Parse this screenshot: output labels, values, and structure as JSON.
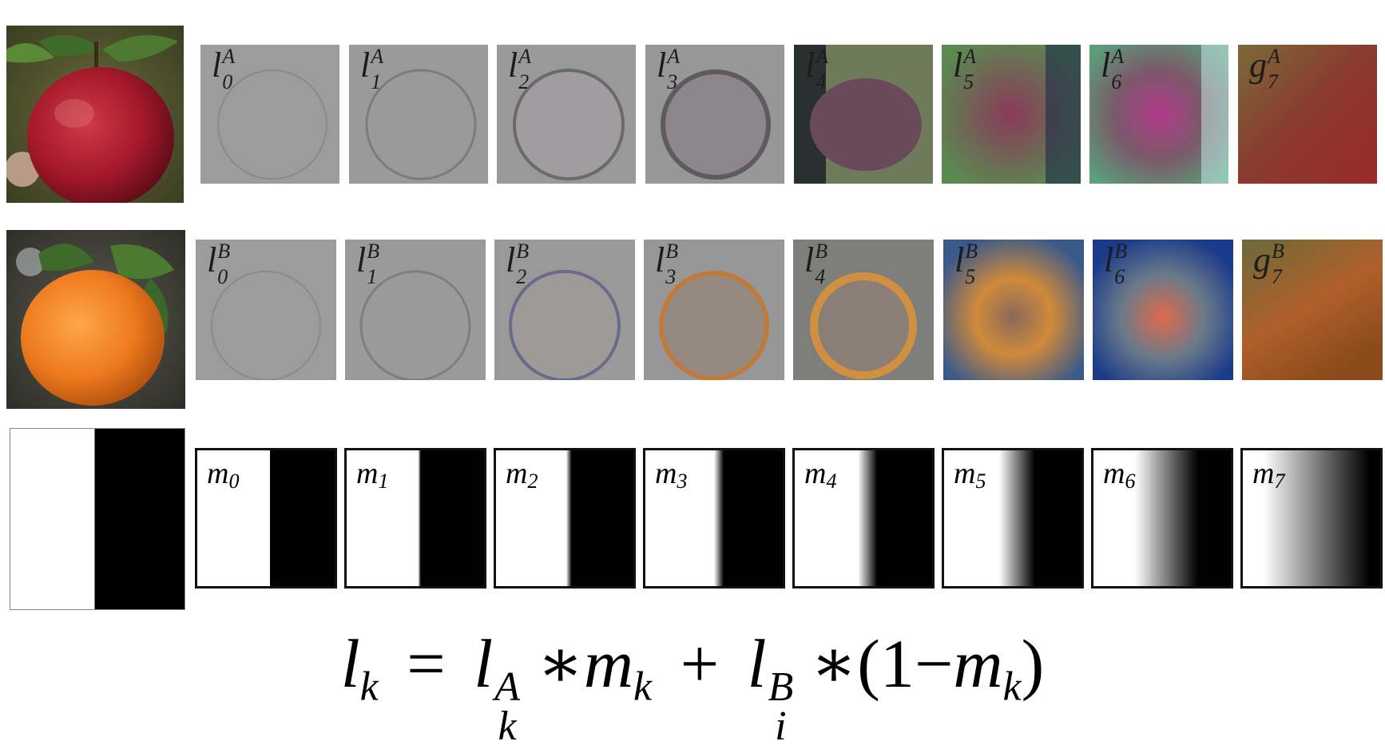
{
  "row_a": {
    "labels": [
      {
        "base": "l",
        "sup": "A",
        "sub": "0"
      },
      {
        "base": "l",
        "sup": "A",
        "sub": "1"
      },
      {
        "base": "l",
        "sup": "A",
        "sub": "2"
      },
      {
        "base": "l",
        "sup": "A",
        "sub": "3"
      },
      {
        "base": "l",
        "sup": "A",
        "sub": "4"
      },
      {
        "base": "l",
        "sup": "A",
        "sub": "5"
      },
      {
        "base": "l",
        "sup": "A",
        "sub": "6"
      },
      {
        "base": "g",
        "sup": "A",
        "sub": "7"
      }
    ]
  },
  "row_b": {
    "labels": [
      {
        "base": "l",
        "sup": "B",
        "sub": "0"
      },
      {
        "base": "l",
        "sup": "B",
        "sub": "1"
      },
      {
        "base": "l",
        "sup": "B",
        "sub": "2"
      },
      {
        "base": "l",
        "sup": "B",
        "sub": "3"
      },
      {
        "base": "l",
        "sup": "B",
        "sub": "4"
      },
      {
        "base": "l",
        "sup": "B",
        "sub": "5"
      },
      {
        "base": "l",
        "sup": "B",
        "sub": "6"
      },
      {
        "base": "g",
        "sup": "B",
        "sub": "7"
      }
    ]
  },
  "row_m": {
    "labels": [
      {
        "base": "m",
        "sub": "0"
      },
      {
        "base": "m",
        "sub": "1"
      },
      {
        "base": "m",
        "sub": "2"
      },
      {
        "base": "m",
        "sub": "3"
      },
      {
        "base": "m",
        "sub": "4"
      },
      {
        "base": "m",
        "sub": "5"
      },
      {
        "base": "m",
        "sub": "6"
      },
      {
        "base": "m",
        "sub": "7"
      }
    ]
  },
  "formula": {
    "lhs": "l",
    "lhs_sub": "k",
    "eq": "=",
    "t1_base": "l",
    "t1_sup": "A",
    "t1_sub": "k",
    "star1": "∗",
    "t1_m": "m",
    "t1_m_sub": "k",
    "plus": "+",
    "t2_base": "l",
    "t2_sup": "B",
    "t2_sub": "i",
    "star2": "∗",
    "paren_open": "(1",
    "minus": "−",
    "t2_m": "m",
    "t2_m_sub": "k",
    "paren_close": ")"
  },
  "colors": {
    "apple": "#a3182a",
    "orange": "#ee7a1e",
    "leaf": "#3e6a2a",
    "laplacian_gray": "#9b9b9b"
  }
}
